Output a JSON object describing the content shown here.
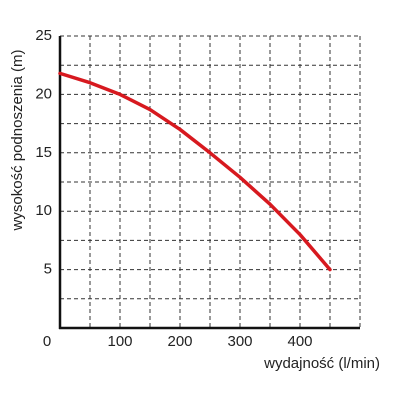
{
  "chart_data": {
    "type": "line",
    "xlabel": "wydajność (l/min)",
    "ylabel": "wysokość podnoszenia (m)",
    "x": [
      0,
      50,
      100,
      150,
      200,
      250,
      300,
      350,
      400,
      450
    ],
    "series": [
      {
        "name": null,
        "color": "#d7191f",
        "values": [
          21.8,
          21.0,
          20.0,
          18.7,
          17.0,
          15.0,
          12.9,
          10.6,
          8.0,
          5.0
        ]
      }
    ],
    "xlim": [
      0,
      500
    ],
    "ylim": [
      0,
      25
    ],
    "xticks": [
      0,
      100,
      200,
      300,
      400
    ],
    "yticks": [
      5,
      10,
      15,
      20,
      25
    ],
    "xgrid": [
      50,
      100,
      150,
      200,
      250,
      300,
      350,
      400,
      450,
      500
    ],
    "ygrid": [
      2.5,
      5,
      7.5,
      10,
      12.5,
      15,
      17.5,
      20,
      22.5,
      25
    ],
    "grid": true
  }
}
